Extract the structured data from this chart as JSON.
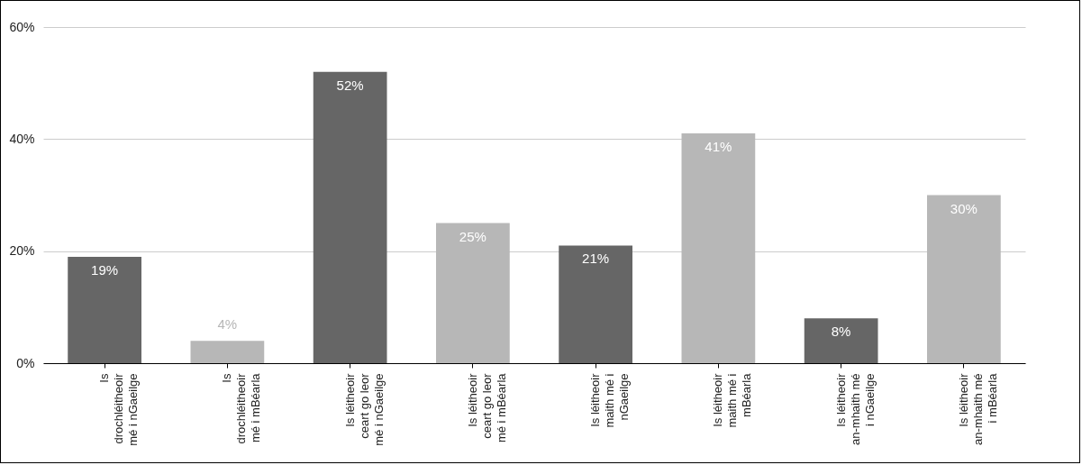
{
  "chart_data": {
    "type": "bar",
    "categories": [
      "Is drochléitheoir mé i nGaeilge",
      "Is drochléitheoir mé i mBéarla",
      "Is léitheoir ceart go leor mé i nGaeilge",
      "Is léitheoir ceart go leor mé i mBéarla",
      "Is léitheoir maith mé i nGaeilge",
      "Is léitheoir maith mé i mBéarla",
      "Is léitheoir an-mhaith mé i nGaeilge",
      "Is léitheoir an-mhaith mé i mBéarla"
    ],
    "values": [
      19,
      4,
      52,
      25,
      21,
      41,
      8,
      30
    ],
    "colors": [
      "#666666",
      "#b7b7b7",
      "#666666",
      "#b7b7b7",
      "#666666",
      "#b7b7b7",
      "#666666",
      "#b7b7b7"
    ],
    "value_labels": [
      "19%",
      "4%",
      "52%",
      "25%",
      "21%",
      "41%",
      "8%",
      "30%"
    ],
    "ylim": [
      0,
      60
    ],
    "yticks": [
      {
        "value": 0,
        "label": "0%"
      },
      {
        "value": 20,
        "label": "20%"
      },
      {
        "value": 40,
        "label": "40%"
      },
      {
        "value": 60,
        "label": "60%"
      }
    ],
    "grid": "y"
  }
}
